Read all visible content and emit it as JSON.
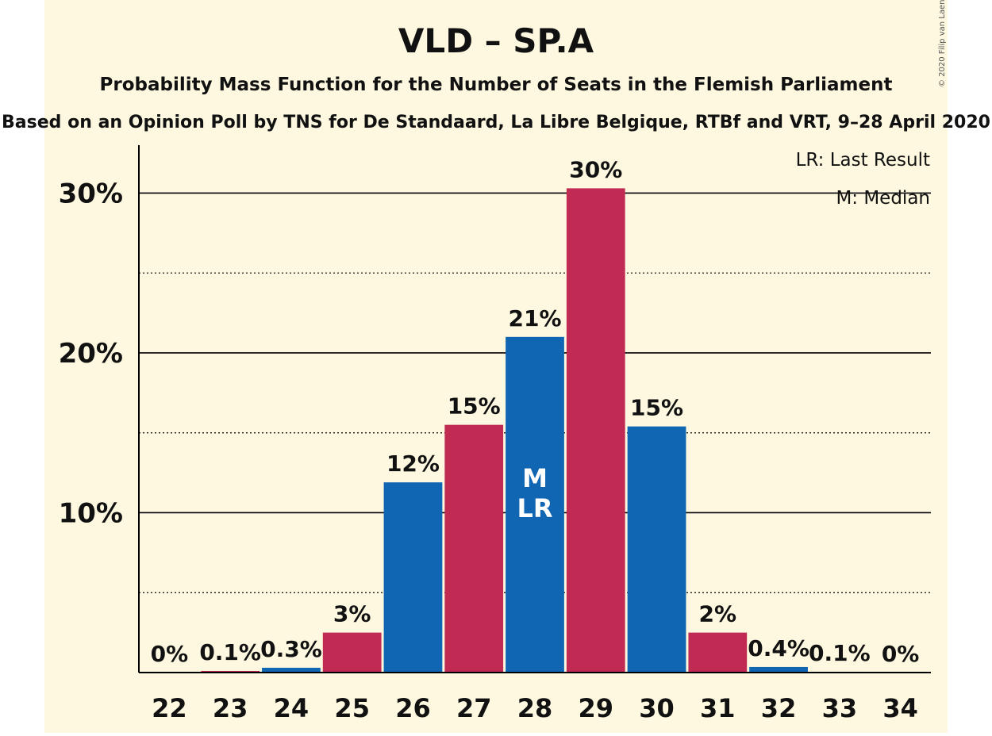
{
  "colors": {
    "background": "#fdf8df",
    "blue": "#1166b3",
    "red": "#c02a53"
  },
  "copyright": "© 2020 Filip van Laenen",
  "chart_data": {
    "type": "bar",
    "title": "VLD – SP.A",
    "subtitle": "Probability Mass Function for the Number of Seats in the Flemish Parliament",
    "subtitle2": "Based on an Opinion Poll by TNS for De Standaard, La Libre Belgique, RTBf and VRT, 9–28 April 2020",
    "legend": [
      "LR: Last Result",
      "M: Median"
    ],
    "legend_position": "top-right",
    "xlabel": "",
    "ylabel": "",
    "ylim": [
      0,
      33
    ],
    "yticks": [
      10,
      20,
      30
    ],
    "ytick_labels": [
      "10%",
      "20%",
      "30%"
    ],
    "minor_gridlines": [
      5,
      15,
      25
    ],
    "categories": [
      "22",
      "23",
      "24",
      "25",
      "26",
      "27",
      "28",
      "29",
      "30",
      "31",
      "32",
      "33",
      "34"
    ],
    "values": [
      0,
      0.1,
      0.3,
      2.5,
      11.9,
      15.5,
      21.0,
      30.3,
      15.4,
      2.5,
      0.35,
      0.05,
      0
    ],
    "labels": [
      "0%",
      "0.1%",
      "0.3%",
      "3%",
      "12%",
      "15%",
      "21%",
      "30%",
      "15%",
      "2%",
      "0.4%",
      "0.1%",
      "0%"
    ],
    "bar_colors": [
      "blue",
      "red",
      "blue",
      "red",
      "blue",
      "red",
      "blue",
      "red",
      "blue",
      "red",
      "blue",
      "red",
      "blue"
    ],
    "annotations": [
      {
        "category": "28",
        "lines": [
          "M",
          "LR"
        ]
      }
    ]
  }
}
